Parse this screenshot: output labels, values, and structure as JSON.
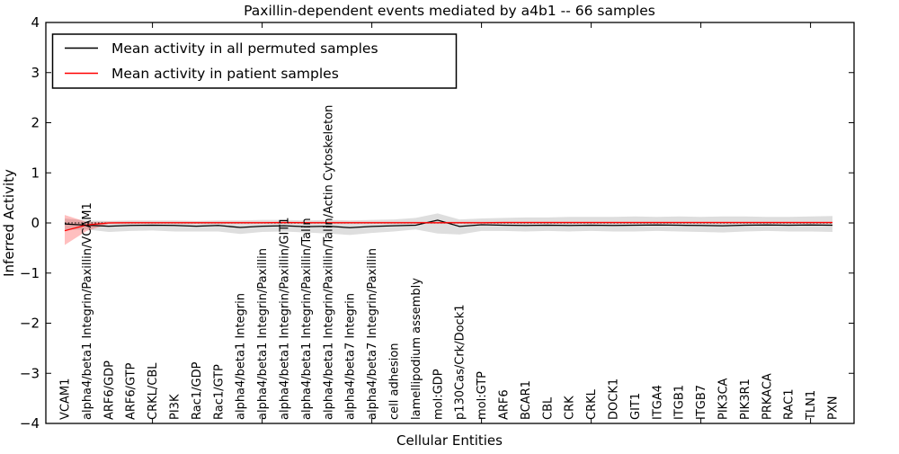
{
  "figure": {
    "title": "Paxillin-dependent events mediated by a4b1 -- 66 samples",
    "xlabel": "Cellular Entities",
    "ylabel": "Inferred Activity"
  },
  "legend": {
    "position": "upper left",
    "entries": [
      {
        "label": "Mean activity in all permuted samples",
        "color": "#000000"
      },
      {
        "label": "Mean activity in patient samples",
        "color": "#ff0000"
      }
    ]
  },
  "chart_data": {
    "type": "line",
    "title": "Paxillin-dependent events mediated by a4b1 -- 66 samples",
    "xlabel": "Cellular Entities",
    "ylabel": "Inferred Activity",
    "ylim": [
      -4,
      4
    ],
    "yticks": [
      4,
      3,
      2,
      1,
      0,
      -1,
      -2,
      -3,
      -4
    ],
    "ytick_labels": [
      "4",
      "3",
      "2",
      "1",
      "0",
      "−1",
      "−2",
      "−3",
      "−4"
    ],
    "xtick_indices": [
      4,
      9,
      14,
      19,
      24,
      29,
      34
    ],
    "grid": false,
    "legend_position": "upper left",
    "categories": [
      "VCAM1",
      "alpha4/beta1 Integrin/Paxillin/VCAM1",
      "ARF6/GDP",
      "ARF6/GTP",
      "CRKL/CBL",
      "PI3K",
      "Rac1/GDP",
      "Rac1/GTP",
      "alpha4/beta1 Integrin",
      "alpha4/beta1 Integrin/Paxillin",
      "alpha4/beta1 Integrin/Paxillin/GIT1",
      "alpha4/beta1 Integrin/Paxillin/Talin",
      "alpha4/beta1 Integrin/Paxillin/Talin/Actin Cytoskeleton",
      "alpha4/beta7 Integrin",
      "alpha4/beta7 Integrin/Paxillin",
      "cell adhesion",
      "lamellipodium assembly",
      "mol:GDP",
      "p130Cas/Crk/Dock1",
      "mol:GTP",
      "ARF6",
      "BCAR1",
      "CBL",
      "CRK",
      "CRKL",
      "DOCK1",
      "GIT1",
      "ITGA4",
      "ITGB1",
      "ITGB7",
      "PIK3CA",
      "PIK3R1",
      "PRKACA",
      "RAC1",
      "TLN1",
      "PXN"
    ],
    "series": [
      {
        "name": "Mean activity in all permuted samples",
        "color": "#000000",
        "values": [
          -0.02,
          -0.045,
          -0.065,
          -0.05,
          -0.045,
          -0.05,
          -0.065,
          -0.05,
          -0.09,
          -0.065,
          -0.055,
          -0.075,
          -0.065,
          -0.095,
          -0.07,
          -0.055,
          -0.045,
          0.055,
          -0.07,
          -0.035,
          -0.045,
          -0.05,
          -0.045,
          -0.05,
          -0.045,
          -0.05,
          -0.045,
          -0.04,
          -0.045,
          -0.05,
          -0.055,
          -0.045,
          -0.04,
          -0.045,
          -0.04,
          -0.045
        ]
      },
      {
        "name": "Mean activity in patient samples",
        "color": "#ff0000",
        "values": [
          -0.155,
          -0.04,
          0.0,
          0.005,
          0.005,
          0.005,
          0.005,
          0.005,
          0.005,
          0.005,
          0.01,
          0.005,
          0.005,
          0.005,
          0.005,
          0.005,
          0.005,
          0.005,
          0.005,
          0.005,
          0.01,
          0.01,
          0.01,
          0.01,
          0.01,
          0.01,
          0.01,
          0.01,
          0.01,
          0.01,
          0.01,
          0.01,
          0.01,
          0.01,
          0.01,
          0.01
        ]
      }
    ],
    "bands": [
      {
        "series": "Mean activity in all permuted samples",
        "color": "#000000",
        "opacity": 0.13,
        "upper": [
          0.09,
          0.05,
          0.04,
          0.05,
          0.05,
          0.05,
          0.04,
          0.05,
          0.05,
          0.06,
          0.06,
          0.05,
          0.06,
          0.05,
          0.06,
          0.07,
          0.1,
          0.19,
          0.07,
          0.09,
          0.1,
          0.11,
          0.11,
          0.12,
          0.12,
          0.12,
          0.13,
          0.12,
          0.13,
          0.12,
          0.13,
          0.13,
          0.12,
          0.12,
          0.13,
          0.14
        ],
        "lower": [
          -0.14,
          -0.13,
          -0.18,
          -0.16,
          -0.15,
          -0.17,
          -0.17,
          -0.17,
          -0.22,
          -0.18,
          -0.17,
          -0.19,
          -0.21,
          -0.24,
          -0.2,
          -0.17,
          -0.13,
          -0.21,
          -0.23,
          -0.16,
          -0.16,
          -0.17,
          -0.16,
          -0.17,
          -0.16,
          -0.17,
          -0.17,
          -0.16,
          -0.17,
          -0.18,
          -0.19,
          -0.17,
          -0.16,
          -0.17,
          -0.17,
          -0.18
        ]
      },
      {
        "series": "Mean activity in patient samples",
        "color": "#ff0000",
        "opacity": 0.25,
        "upper": [
          0.16,
          0.02,
          0.025,
          0.025,
          0.025,
          0.025,
          0.025,
          0.025,
          0.025,
          0.025,
          0.025,
          0.025,
          0.025,
          0.025,
          0.025,
          0.025,
          0.025,
          0.025,
          0.025,
          0.025,
          0.025,
          0.025,
          0.025,
          0.025,
          0.025,
          0.025,
          0.025,
          0.025,
          0.025,
          0.025,
          0.025,
          0.025,
          0.025,
          0.025,
          0.025,
          0.025
        ],
        "lower": [
          -0.44,
          -0.16,
          -0.02,
          -0.015,
          -0.015,
          -0.015,
          -0.015,
          -0.015,
          -0.015,
          -0.015,
          -0.015,
          -0.015,
          -0.015,
          -0.015,
          -0.015,
          -0.015,
          -0.015,
          -0.015,
          -0.015,
          -0.015,
          -0.015,
          -0.015,
          -0.015,
          -0.015,
          -0.015,
          -0.015,
          -0.015,
          -0.015,
          -0.015,
          -0.015,
          -0.015,
          -0.015,
          -0.015,
          -0.015,
          -0.015,
          -0.015
        ]
      }
    ],
    "reference_line": {
      "y": 0,
      "style": "dotted",
      "color": "#000000"
    }
  }
}
